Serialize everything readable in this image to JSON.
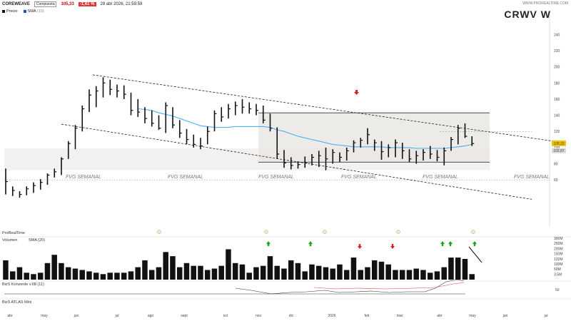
{
  "header": {
    "symbol": "COREWEAVE",
    "exchange": "Compuesta",
    "price": "105,33",
    "change": "-1,61 %",
    "datetime": "28 abr 2026, 21:59:59",
    "brand": "WWW.PROREALTIME.COM",
    "ticker": "CRWV  W"
  },
  "legend": {
    "price_label": "Precio",
    "sma_label": "SMA",
    "sma_period": "(10)",
    "price_color": "#111111",
    "sma_color": "#1a4fd6"
  },
  "panels": {
    "volume_title": "Volumen",
    "volume_sma": "SMA",
    "volume_sma_period": "(20)",
    "panel3_title": "BizS Konzerde v.08",
    "panel3_period": "(11)",
    "panel4_title": "BizS ATLAS Mini",
    "realtime": "ProRealTime"
  },
  "colors": {
    "bars": "#111111",
    "sma": "#4ab0f0",
    "zone": "#e9e6e2",
    "arrow_up": "#1aa51a",
    "arrow_down": "#d0261d",
    "current_price_bg": "#f2c200",
    "level_bg": "#d9d9d9"
  },
  "annotations": {
    "fvg": [
      "FVG SEMANAL",
      "FVG SEMANAL",
      "FVG SEMANAL",
      "FVG SEMANAL",
      "FVG SEMANAL",
      "FVG SEMANAL"
    ],
    "price_tag": "105,33",
    "price_tag2": "102,87",
    "volume_tag": "3,5M"
  },
  "chart_data": {
    "type": "ohlc",
    "title": "CRWV  W",
    "ylim": [
      0,
      240
    ],
    "yticks": [
      60,
      80,
      100,
      120,
      140,
      160,
      180,
      200,
      220,
      240
    ],
    "xticks": [
      "abr",
      "may",
      "jun",
      "jul",
      "ago",
      "sept",
      "oct",
      "nov",
      "dic",
      "2026",
      "feb",
      "mar",
      "abr",
      "may",
      "jun",
      "jul"
    ],
    "bars": [
      {
        "h": 74,
        "l": 42,
        "c": 58
      },
      {
        "h": 52,
        "l": 40,
        "c": 47
      },
      {
        "h": 46,
        "l": 38,
        "c": 42
      },
      {
        "h": 52,
        "l": 41,
        "c": 49
      },
      {
        "h": 57,
        "l": 44,
        "c": 53
      },
      {
        "h": 61,
        "l": 48,
        "c": 57
      },
      {
        "h": 68,
        "l": 54,
        "c": 66
      },
      {
        "h": 74,
        "l": 63,
        "c": 70
      },
      {
        "h": 88,
        "l": 66,
        "c": 86
      },
      {
        "h": 108,
        "l": 86,
        "c": 105
      },
      {
        "h": 128,
        "l": 98,
        "c": 124
      },
      {
        "h": 152,
        "l": 120,
        "c": 148
      },
      {
        "h": 172,
        "l": 144,
        "c": 165
      },
      {
        "h": 176,
        "l": 150,
        "c": 170
      },
      {
        "h": 187,
        "l": 162,
        "c": 180
      },
      {
        "h": 184,
        "l": 165,
        "c": 172
      },
      {
        "h": 178,
        "l": 162,
        "c": 170
      },
      {
        "h": 177,
        "l": 160,
        "c": 166
      },
      {
        "h": 168,
        "l": 140,
        "c": 146
      },
      {
        "h": 160,
        "l": 138,
        "c": 144
      },
      {
        "h": 150,
        "l": 130,
        "c": 136
      },
      {
        "h": 146,
        "l": 126,
        "c": 130
      },
      {
        "h": 140,
        "l": 122,
        "c": 124
      },
      {
        "h": 156,
        "l": 118,
        "c": 152
      },
      {
        "h": 150,
        "l": 124,
        "c": 128
      },
      {
        "h": 134,
        "l": 112,
        "c": 118
      },
      {
        "h": 123,
        "l": 104,
        "c": 110
      },
      {
        "h": 116,
        "l": 100,
        "c": 104
      },
      {
        "h": 112,
        "l": 98,
        "c": 102
      },
      {
        "h": 126,
        "l": 104,
        "c": 120
      },
      {
        "h": 146,
        "l": 120,
        "c": 142
      },
      {
        "h": 150,
        "l": 132,
        "c": 138
      },
      {
        "h": 154,
        "l": 136,
        "c": 148
      },
      {
        "h": 157,
        "l": 140,
        "c": 152
      },
      {
        "h": 160,
        "l": 142,
        "c": 150
      },
      {
        "h": 156,
        "l": 142,
        "c": 148
      },
      {
        "h": 154,
        "l": 140,
        "c": 146
      },
      {
        "h": 152,
        "l": 130,
        "c": 134
      },
      {
        "h": 142,
        "l": 120,
        "c": 124
      },
      {
        "h": 125,
        "l": 86,
        "c": 92
      },
      {
        "h": 97,
        "l": 75,
        "c": 81
      },
      {
        "h": 88,
        "l": 73,
        "c": 78
      },
      {
        "h": 83,
        "l": 74,
        "c": 79
      },
      {
        "h": 89,
        "l": 75,
        "c": 81
      },
      {
        "h": 92,
        "l": 78,
        "c": 88
      },
      {
        "h": 96,
        "l": 76,
        "c": 90
      },
      {
        "h": 100,
        "l": 72,
        "c": 86
      },
      {
        "h": 98,
        "l": 80,
        "c": 94
      },
      {
        "h": 94,
        "l": 82,
        "c": 88
      },
      {
        "h": 100,
        "l": 84,
        "c": 96
      },
      {
        "h": 109,
        "l": 94,
        "c": 106
      },
      {
        "h": 112,
        "l": 100,
        "c": 109
      },
      {
        "h": 124,
        "l": 104,
        "c": 116
      },
      {
        "h": 110,
        "l": 96,
        "c": 106
      },
      {
        "h": 108,
        "l": 85,
        "c": 95
      },
      {
        "h": 104,
        "l": 88,
        "c": 100
      },
      {
        "h": 110,
        "l": 88,
        "c": 106
      },
      {
        "h": 106,
        "l": 86,
        "c": 96
      },
      {
        "h": 98,
        "l": 82,
        "c": 86
      },
      {
        "h": 96,
        "l": 80,
        "c": 90
      },
      {
        "h": 98,
        "l": 84,
        "c": 94
      },
      {
        "h": 102,
        "l": 86,
        "c": 92
      },
      {
        "h": 97,
        "l": 83,
        "c": 88
      },
      {
        "h": 100,
        "l": 78,
        "c": 96
      },
      {
        "h": 113,
        "l": 96,
        "c": 110
      },
      {
        "h": 128,
        "l": 104,
        "c": 124
      },
      {
        "h": 130,
        "l": 112,
        "c": 114
      },
      {
        "h": 114,
        "l": 102,
        "c": 105
      }
    ],
    "sma": [
      null,
      null,
      null,
      null,
      null,
      null,
      null,
      null,
      null,
      null,
      null,
      null,
      null,
      null,
      null,
      null,
      null,
      null,
      null,
      148,
      147,
      146,
      143,
      141,
      139,
      136,
      133,
      130,
      127,
      126,
      125,
      125,
      125,
      126,
      126,
      126,
      126,
      126,
      125,
      122,
      120,
      117,
      114,
      112,
      110,
      108,
      106,
      104,
      103,
      102,
      101,
      101,
      101,
      101,
      101,
      100,
      100,
      100,
      100,
      99,
      99,
      99,
      99,
      99,
      100,
      101,
      102,
      104
    ],
    "volume": [
      14,
      6,
      9,
      5,
      4,
      5,
      12,
      18,
      12,
      9,
      8,
      7,
      6,
      5,
      4,
      5,
      5,
      5,
      6,
      9,
      14,
      7,
      9,
      20,
      17,
      9,
      12,
      10,
      10,
      7,
      8,
      10,
      22,
      12,
      11,
      5,
      9,
      10,
      17,
      10,
      8,
      14,
      12,
      6,
      11,
      10,
      9,
      8,
      11,
      7,
      16,
      7,
      9,
      14,
      13,
      11,
      7,
      7,
      7,
      8,
      7,
      5,
      6,
      9,
      16,
      16,
      15,
      4
    ],
    "volume_ylim": [
      0,
      30
    ],
    "volume_yticks": [
      "300M",
      "250M",
      "200M",
      "150M",
      "132M",
      "100M",
      "50M",
      "3,5M"
    ]
  }
}
